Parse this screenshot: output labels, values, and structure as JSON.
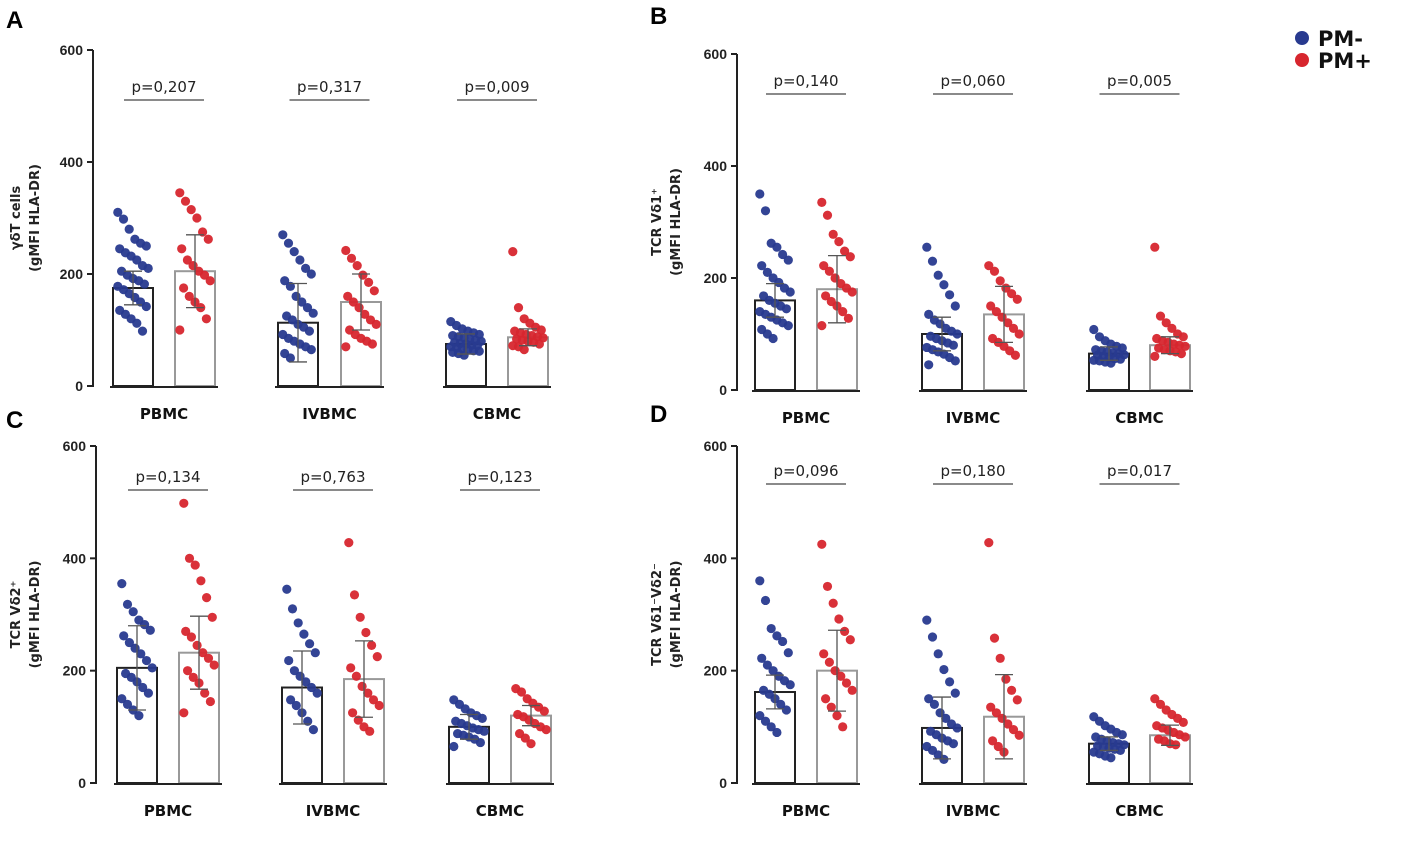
{
  "legend": {
    "entries": [
      {
        "label": "PM-",
        "color": "#283a8f"
      },
      {
        "label": "PM+",
        "color": "#d7262e"
      }
    ]
  },
  "chart_data": [
    {
      "panel": "A",
      "type": "bar",
      "ylabel_line1": "γδT cells",
      "ylabel_line2": "(gMFI HLA-DR)",
      "ylim": [
        0,
        600
      ],
      "yticks": [
        "0",
        "200",
        "400",
        "600"
      ],
      "categories": [
        "PBMC",
        "IVBMC",
        "CBMC"
      ],
      "p_values": [
        "p=0,207",
        "p=0,317",
        "p=0,009"
      ],
      "series": [
        {
          "name": "PM-",
          "means": [
            175,
            113,
            75
          ],
          "err": [
            30,
            70,
            18
          ],
          "points": [
            [
              310,
              298,
              280,
              262,
              255,
              250,
              245,
              238,
              232,
              225,
              215,
              210,
              205,
              198,
              192,
              188,
              182,
              178,
              172,
              165,
              158,
              150,
              142,
              135,
              128,
              120,
              112,
              98
            ],
            [
              270,
              255,
              240,
              225,
              210,
              200,
              188,
              178,
              160,
              150,
              140,
              130,
              125,
              118,
              110,
              105,
              98,
              92,
              85,
              80,
              75,
              70,
              65,
              58,
              50
            ],
            [
              115,
              108,
              102,
              98,
              95,
              92,
              90,
              88,
              86,
              84,
              82,
              80,
              78,
              76,
              75,
              73,
              72,
              70,
              68,
              67,
              65,
              63,
              62,
              60,
              58,
              55
            ]
          ]
        },
        {
          "name": "PM+",
          "means": [
            205,
            150,
            87
          ],
          "err": [
            65,
            50,
            15
          ],
          "points": [
            [
              345,
              330,
              315,
              300,
              275,
              262,
              245,
              225,
              215,
              205,
              198,
              188,
              175,
              160,
              150,
              140,
              120,
              100
            ],
            [
              242,
              228,
              215,
              198,
              185,
              170,
              160,
              150,
              140,
              128,
              118,
              110,
              100,
              92,
              85,
              80,
              75,
              70
            ],
            [
              240,
              140,
              120,
              112,
              105,
              100,
              98,
              95,
              92,
              90,
              88,
              86,
              84,
              82,
              80,
              78,
              75,
              72,
              70,
              65
            ]
          ]
        }
      ]
    },
    {
      "panel": "B",
      "type": "bar",
      "ylabel_line1": "TCR Vδ1⁺",
      "ylabel_line2": "(gMFI HLA-DR)",
      "ylim": [
        0,
        600
      ],
      "yticks": [
        "0",
        "200",
        "400",
        "600"
      ],
      "categories": [
        "PBMC",
        "IVBMC",
        "CBMC"
      ],
      "p_values": [
        "p=0,140",
        "p=0,060",
        "p=0,005"
      ],
      "series": [
        {
          "name": "PM-",
          "means": [
            160,
            100,
            65
          ],
          "err": [
            30,
            30,
            12
          ],
          "points": [
            [
              350,
              320,
              262,
              255,
              242,
              232,
              222,
              210,
              200,
              192,
              182,
              175,
              168,
              160,
              155,
              150,
              145,
              140,
              135,
              130,
              125,
              120,
              115,
              108,
              100,
              92
            ],
            [
              255,
              230,
              205,
              188,
              170,
              150,
              135,
              125,
              118,
              110,
              105,
              100,
              96,
              92,
              88,
              84,
              80,
              76,
              72,
              68,
              64,
              58,
              52,
              45
            ],
            [
              108,
              95,
              88,
              82,
              78,
              75,
              72,
              70,
              68,
              66,
              65,
              63,
              62,
              60,
              58,
              56,
              55,
              53,
              52,
              50,
              48
            ]
          ]
        },
        {
          "name": "PM+",
          "means": [
            180,
            135,
            80
          ],
          "err": [
            60,
            50,
            15
          ],
          "points": [
            [
              335,
              312,
              278,
              265,
              248,
              238,
              222,
              212,
              200,
              190,
              182,
              175,
              168,
              158,
              150,
              140,
              128,
              115
            ],
            [
              222,
              212,
              195,
              182,
              172,
              162,
              150,
              140,
              130,
              120,
              110,
              100,
              92,
              85,
              78,
              70,
              62
            ],
            [
              255,
              132,
              120,
              110,
              100,
              95,
              92,
              88,
              85,
              82,
              80,
              78,
              75,
              72,
              70,
              68,
              65,
              60
            ]
          ]
        }
      ]
    },
    {
      "panel": "C",
      "type": "bar",
      "ylabel_line1": "TCR Vδ2⁺",
      "ylabel_line2": "(gMFI HLA-DR)",
      "ylim": [
        0,
        600
      ],
      "yticks": [
        "0",
        "200",
        "400",
        "600"
      ],
      "categories": [
        "PBMC",
        "IVBMC",
        "CBMC"
      ],
      "p_values": [
        "p=0,134",
        "p=0,763",
        "p=0,123"
      ],
      "series": [
        {
          "name": "PM-",
          "means": [
            205,
            170,
            100
          ],
          "err": [
            75,
            65,
            22
          ],
          "points": [
            [
              355,
              318,
              305,
              290,
              282,
              272,
              262,
              250,
              240,
              230,
              218,
              205,
              195,
              188,
              180,
              170,
              160,
              150,
              140,
              130,
              120
            ],
            [
              345,
              310,
              285,
              265,
              248,
              232,
              218,
              200,
              190,
              180,
              170,
              160,
              148,
              138,
              125,
              110,
              95
            ],
            [
              148,
              140,
              132,
              125,
              120,
              115,
              110,
              106,
              102,
              98,
              95,
              92,
              88,
              85,
              82,
              78,
              72,
              65
            ]
          ]
        },
        {
          "name": "PM+",
          "means": [
            232,
            185,
            120
          ],
          "err": [
            65,
            68,
            18
          ],
          "points": [
            [
              498,
              400,
              388,
              360,
              330,
              295,
              270,
              260,
              245,
              232,
              222,
              210,
              200,
              188,
              178,
              160,
              145,
              125
            ],
            [
              428,
              335,
              295,
              268,
              245,
              225,
              205,
              190,
              172,
              160,
              148,
              138,
              125,
              112,
              100,
              92
            ],
            [
              168,
              162,
              150,
              142,
              135,
              128,
              122,
              118,
              112,
              106,
              100,
              95,
              88,
              80,
              70
            ]
          ]
        }
      ]
    },
    {
      "panel": "D",
      "type": "bar",
      "ylabel_line1": "TCR Vδ1⁻Vδ2⁻",
      "ylabel_line2": "(gMFI HLA-DR)",
      "ylim": [
        0,
        600
      ],
      "yticks": [
        "0",
        "200",
        "400",
        "600"
      ],
      "categories": [
        "PBMC",
        "IVBMC",
        "CBMC"
      ],
      "p_values": [
        "p=0,096",
        "p=0,180",
        "p=0,017"
      ],
      "series": [
        {
          "name": "PM-",
          "means": [
            162,
            98,
            70
          ],
          "err": [
            30,
            55,
            12
          ],
          "points": [
            [
              360,
              325,
              275,
              262,
              252,
              232,
              222,
              210,
              200,
              190,
              182,
              175,
              165,
              158,
              150,
              140,
              130,
              120,
              110,
              100,
              90
            ],
            [
              290,
              260,
              230,
              202,
              180,
              160,
              150,
              140,
              125,
              115,
              105,
              98,
              92,
              86,
              80,
              75,
              70,
              65,
              58,
              50,
              42
            ],
            [
              118,
              110,
              102,
              96,
              90,
              86,
              82,
              78,
              75,
              72,
              70,
              68,
              66,
              64,
              62,
              60,
              58,
              55,
              52,
              48,
              45
            ]
          ]
        },
        {
          "name": "PM+",
          "means": [
            200,
            118,
            85
          ],
          "err": [
            72,
            75,
            18
          ],
          "points": [
            [
              425,
              350,
              320,
              292,
              270,
              255,
              230,
              215,
              200,
              190,
              178,
              165,
              150,
              135,
              120,
              100
            ],
            [
              428,
              258,
              222,
              185,
              165,
              148,
              135,
              125,
              115,
              105,
              95,
              85,
              75,
              65,
              55
            ],
            [
              150,
              140,
              130,
              122,
              115,
              108,
              102,
              98,
              94,
              90,
              86,
              82,
              78,
              75,
              70,
              68
            ]
          ]
        }
      ]
    }
  ]
}
